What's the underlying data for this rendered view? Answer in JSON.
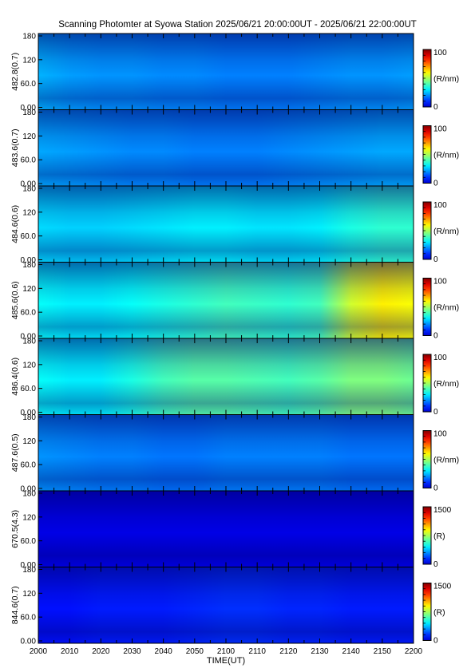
{
  "title": "Scanning Photomter at Syowa Station  2025/06/21 20:00:00UT - 2025/06/21 22:00:00UT",
  "xlabel": "TIME(UT)",
  "colors": {
    "low": "#00008f",
    "mid": "#00ff00",
    "high": "#ff0000"
  },
  "chart_data": {
    "type": "heatmap",
    "x_ticks": [
      "2000",
      "2010",
      "2020",
      "2030",
      "2040",
      "2050",
      "2100",
      "2110",
      "2120",
      "2130",
      "2140",
      "2150",
      "2200"
    ],
    "xlim": [
      "20:00",
      "22:00"
    ],
    "y_ticks": [
      "0.00",
      "60.0",
      "120",
      "180"
    ],
    "ylim": [
      0,
      180
    ],
    "panels": [
      {
        "label": "482.8(0.7)",
        "unit": "(R/nm)",
        "cmin": "0",
        "cmax": "100",
        "intensity": [
          0.3,
          0.28,
          0.27,
          0.27,
          0.26,
          0.26,
          0.25,
          0.25,
          0.25,
          0.26,
          0.27,
          0.27,
          0.28
        ]
      },
      {
        "label": "483.6(0.7)",
        "unit": "(R/nm)",
        "cmin": "0",
        "cmax": "100",
        "intensity": [
          0.29,
          0.28,
          0.27,
          0.26,
          0.26,
          0.25,
          0.25,
          0.25,
          0.26,
          0.27,
          0.28,
          0.29,
          0.29
        ]
      },
      {
        "label": "484.6(0.6)",
        "unit": "(R/nm)",
        "cmin": "0",
        "cmax": "100",
        "intensity": [
          0.34,
          0.33,
          0.33,
          0.34,
          0.35,
          0.36,
          0.36,
          0.35,
          0.35,
          0.36,
          0.4,
          0.42,
          0.42
        ]
      },
      {
        "label": "485.6(0.6)",
        "unit": "(R/nm)",
        "cmin": "0",
        "cmax": "100",
        "intensity": [
          0.38,
          0.36,
          0.36,
          0.38,
          0.4,
          0.42,
          0.44,
          0.43,
          0.42,
          0.44,
          0.58,
          0.64,
          0.62
        ]
      },
      {
        "label": "486.4(0.6)",
        "unit": "(R/nm)",
        "cmin": "0",
        "cmax": "100",
        "intensity": [
          0.38,
          0.36,
          0.36,
          0.4,
          0.44,
          0.46,
          0.46,
          0.45,
          0.44,
          0.46,
          0.5,
          0.5,
          0.48
        ]
      },
      {
        "label": "487.6(0.5)",
        "unit": "(R/nm)",
        "cmin": "0",
        "cmax": "100",
        "intensity": [
          0.27,
          0.26,
          0.25,
          0.25,
          0.24,
          0.24,
          0.25,
          0.25,
          0.25,
          0.25,
          0.24,
          0.24,
          0.24
        ]
      },
      {
        "label": "670.5(4.3)",
        "unit": "(R)",
        "cmin": "0",
        "cmax": "1500",
        "intensity": [
          0.1,
          0.1,
          0.1,
          0.1,
          0.1,
          0.1,
          0.1,
          0.1,
          0.1,
          0.1,
          0.1,
          0.1,
          0.1
        ]
      },
      {
        "label": "844.6(0.7)",
        "unit": "(R)",
        "cmin": "0",
        "cmax": "1500",
        "intensity": [
          0.14,
          0.14,
          0.15,
          0.15,
          0.15,
          0.16,
          0.17,
          0.17,
          0.16,
          0.16,
          0.15,
          0.15,
          0.15
        ]
      }
    ]
  }
}
